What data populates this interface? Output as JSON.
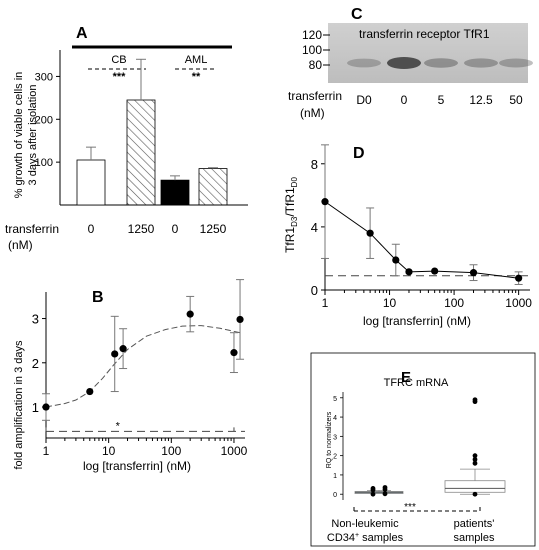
{
  "chart_data": [
    {
      "panel": "A",
      "type": "bar",
      "ylabel_line1": "% growth of viable cells in",
      "ylabel_line2": "3 days after isolation",
      "ylim": [
        0,
        350
      ],
      "yticks": [
        "300",
        "200",
        "100"
      ],
      "ytick_values": [
        300,
        200,
        100
      ],
      "groups": [
        {
          "name": "CB",
          "significance": "***"
        },
        {
          "name": "AML",
          "significance": "**"
        }
      ],
      "bars": [
        {
          "group": "CB",
          "transferrin": "0",
          "value": 105,
          "error": 30,
          "fill": "#ffffff",
          "pattern": "none"
        },
        {
          "group": "CB",
          "transferrin": "1250",
          "value": 245,
          "error": 95,
          "fill": "#ffffff",
          "pattern": "hatch"
        },
        {
          "group": "AML",
          "transferrin": "0",
          "value": 58,
          "error": 10,
          "fill": "#000000",
          "pattern": "none"
        },
        {
          "group": "AML",
          "transferrin": "1250",
          "value": 85,
          "error": 2,
          "fill": "#ffffff",
          "pattern": "hatch"
        }
      ],
      "xlabel": "transferrin",
      "xlabel_unit": "(nM)",
      "xticks": [
        "0",
        "1250",
        "0",
        "1250"
      ]
    },
    {
      "panel": "B",
      "type": "line",
      "xscale": "log",
      "xlabel": "log [transferrin] (nM)",
      "ylabel": "fold amplification in 3 days",
      "xlim": [
        1,
        1500
      ],
      "ylim": [
        0.3,
        3.6
      ],
      "xticks": [
        "1",
        "10",
        "100",
        "1000"
      ],
      "xtick_values": [
        1,
        10,
        100,
        1000
      ],
      "yticks": [
        "1",
        "2",
        "3"
      ],
      "ytick_values": [
        1,
        2,
        3
      ],
      "points": [
        {
          "x": 1,
          "y": 1.0,
          "err": 0.3
        },
        {
          "x": 5,
          "y": 1.35,
          "err": 0
        },
        {
          "x": 12.5,
          "y": 2.2,
          "err": 0.85
        },
        {
          "x": 17,
          "y": 2.32,
          "err": 0.45
        },
        {
          "x": 200,
          "y": 3.1,
          "err": 0.4
        },
        {
          "x": 1000,
          "y": 2.23,
          "err": 0.45
        },
        {
          "x": 1250,
          "y": 2.98,
          "err": 0.9
        }
      ],
      "fit_curve": [
        {
          "x": 1,
          "y": 1.0
        },
        {
          "x": 2,
          "y": 1.08
        },
        {
          "x": 3,
          "y": 1.16
        },
        {
          "x": 5,
          "y": 1.35
        },
        {
          "x": 8,
          "y": 1.65
        },
        {
          "x": 12,
          "y": 1.95
        },
        {
          "x": 20,
          "y": 2.3
        },
        {
          "x": 40,
          "y": 2.6
        },
        {
          "x": 80,
          "y": 2.75
        },
        {
          "x": 150,
          "y": 2.83
        },
        {
          "x": 300,
          "y": 2.84
        },
        {
          "x": 600,
          "y": 2.78
        },
        {
          "x": 1250,
          "y": 2.68
        }
      ],
      "baseline": 0.45,
      "significance": "*"
    },
    {
      "panel": "C",
      "type": "western_blot",
      "title": "transferrin receptor TfR1",
      "mw_markers": [
        "120",
        "100",
        "80"
      ],
      "lane_label": "transferrin",
      "lane_unit": "(nM)",
      "lanes": [
        "D0",
        "0",
        "5",
        "12.5",
        "50"
      ],
      "band_intensity": [
        0.2,
        1.0,
        0.35,
        0.3,
        0.25
      ]
    },
    {
      "panel": "D",
      "type": "line",
      "xscale": "log",
      "xlabel": "log [transferrin] (nM)",
      "ylabel_main": "TfR1",
      "ylabel_sub1": "D3",
      "ylabel_mid": "/TfR1",
      "ylabel_sub2": "D0",
      "xlim": [
        1,
        1500
      ],
      "ylim": [
        0,
        9
      ],
      "xticks": [
        "1",
        "10",
        "100",
        "1000"
      ],
      "xtick_values": [
        1,
        10,
        100,
        1000
      ],
      "yticks": [
        "0",
        "4",
        "8"
      ],
      "ytick_values": [
        0,
        4,
        8
      ],
      "points": [
        {
          "x": 1,
          "y": 5.6,
          "err": 3.6
        },
        {
          "x": 5,
          "y": 3.6,
          "err": 1.6
        },
        {
          "x": 12.5,
          "y": 1.9,
          "err": 1.0
        },
        {
          "x": 20,
          "y": 1.15,
          "err": 0
        },
        {
          "x": 50,
          "y": 1.2,
          "err": 0
        },
        {
          "x": 200,
          "y": 1.1,
          "err": 0.5
        },
        {
          "x": 1000,
          "y": 0.75,
          "err": 0.4
        }
      ],
      "baseline": 0.9
    },
    {
      "panel": "E",
      "type": "boxplot",
      "title": "TFRC mRNA",
      "ylabel": "RQ to normalizers",
      "ylim": [
        -0.3,
        5.3
      ],
      "yticks": [
        "0",
        "1",
        "2",
        "3",
        "4",
        "5"
      ],
      "ytick_values": [
        0,
        1,
        2,
        3,
        4,
        5
      ],
      "boxes": [
        {
          "label_line1": "Non-leukemic",
          "label_line2": "CD34",
          "label_sup": "+",
          "label_line2_rest": " samples",
          "whisker_low": 0.05,
          "q1": 0.08,
          "median": 0.1,
          "q3": 0.14,
          "whisker_high": 0.2,
          "outliers": [
            0.0,
            0.02,
            0.22,
            0.25,
            0.3,
            0.35
          ]
        },
        {
          "label_line1": "patients'",
          "label_line2": "samples",
          "whisker_low": 0.0,
          "q1": 0.1,
          "median": 0.3,
          "q3": 0.7,
          "whisker_high": 1.3,
          "outliers": [
            0.0,
            1.6,
            1.8,
            2.0,
            4.8,
            4.9
          ]
        }
      ],
      "significance": "***"
    }
  ]
}
